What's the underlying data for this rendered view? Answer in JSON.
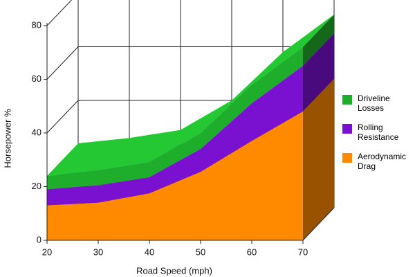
{
  "chart_data": {
    "type": "stacked-area-3d",
    "x_label": "Road Speed (mph)",
    "y_label": "Horsepower %",
    "x": [
      20,
      30,
      40,
      50,
      60,
      70
    ],
    "xlim": [
      20,
      70
    ],
    "xticks": [
      20,
      30,
      40,
      50,
      60,
      70
    ],
    "ylim": [
      0,
      80
    ],
    "yticks": [
      0,
      20,
      40,
      60,
      80
    ],
    "grid": true,
    "legend": "right",
    "series": [
      {
        "name": "Aerodynamic Drag",
        "color": "#ff8a00",
        "values": [
          13,
          14,
          17.5,
          25.5,
          37,
          48
        ]
      },
      {
        "name": "Rolling Resistance",
        "color": "#7a10d0",
        "values": [
          6,
          6.5,
          6,
          8.5,
          14,
          17
        ]
      },
      {
        "name": "Driveline Losses",
        "color": "#1fae2c",
        "values": [
          5,
          5.5,
          5.5,
          6,
          7,
          7
        ]
      }
    ]
  }
}
